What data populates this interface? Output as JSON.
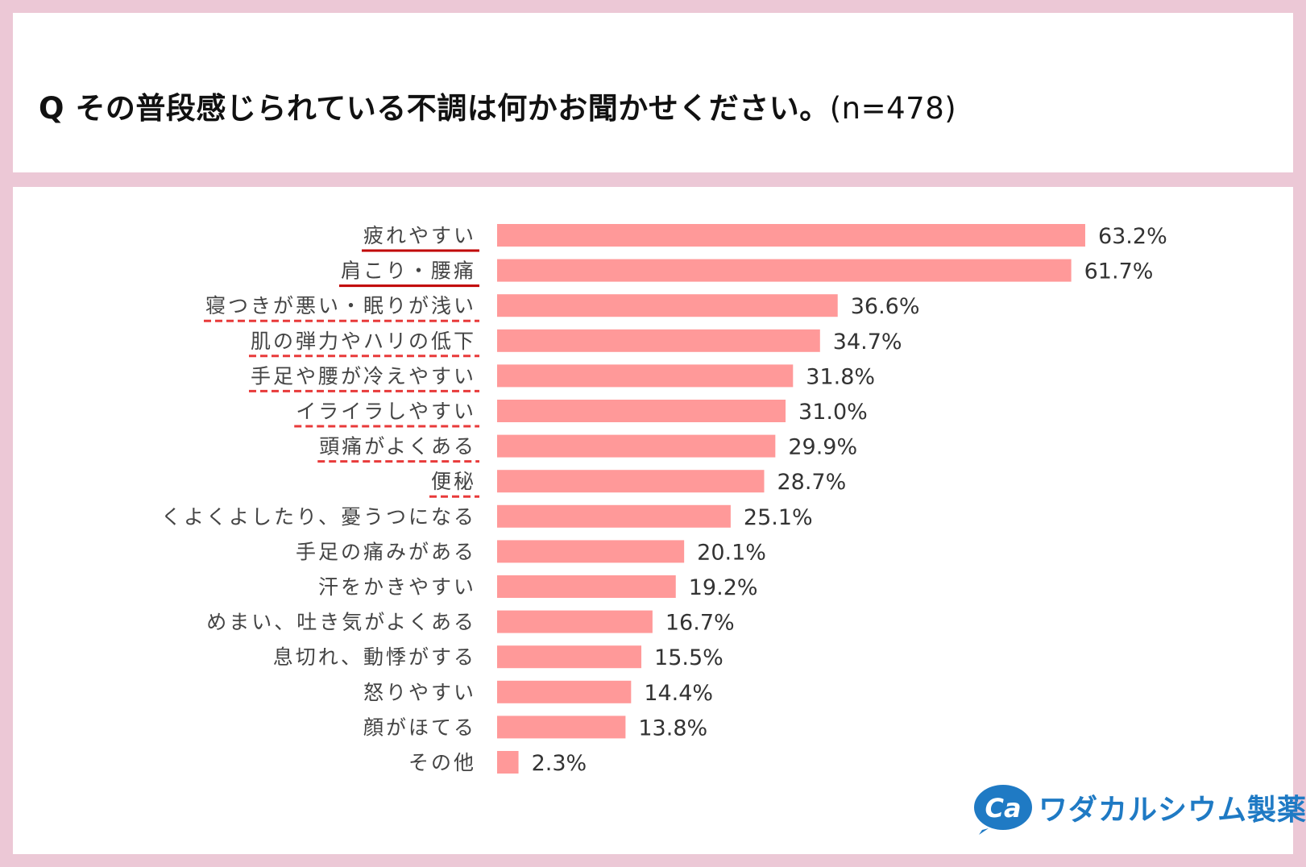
{
  "title": {
    "question": "Q その普段感じられている不調は何かお聞かせください。",
    "sample": "(n=478)"
  },
  "brand": {
    "mark": "Ca",
    "name": "ワダカルシウム製薬",
    "color": "#1f7ac4"
  },
  "colors": {
    "bar": "#ff9999",
    "solid_underline": "#c00000",
    "dashed_underline": "#e83a3a"
  },
  "chart_data": {
    "type": "bar",
    "orientation": "horizontal",
    "title": "",
    "xlabel": "",
    "ylabel": "",
    "xlim": [
      0,
      70
    ],
    "unit": "%",
    "categories": [
      "疲れやすい",
      "肩こり・腰痛",
      "寝つきが悪い・眠りが浅い",
      "肌の弾力やハリの低下",
      "手足や腰が冷えやすい",
      "イライラしやすい",
      "頭痛がよくある",
      "便秘",
      "くよくよしたり、憂うつになる",
      "手足の痛みがある",
      "汗をかきやすい",
      "めまい、吐き気がよくある",
      "息切れ、動悸がする",
      "怒りやすい",
      "顔がほてる",
      "その他"
    ],
    "values": [
      63.2,
      61.7,
      36.6,
      34.7,
      31.8,
      31.0,
      29.9,
      28.7,
      25.1,
      20.1,
      19.2,
      16.7,
      15.5,
      14.4,
      13.8,
      2.3
    ],
    "labels": [
      "63.2%",
      "61.7%",
      "36.6%",
      "34.7%",
      "31.8%",
      "31.0%",
      "29.9%",
      "28.7%",
      "25.1%",
      "20.1%",
      "19.2%",
      "16.7%",
      "15.5%",
      "14.4%",
      "13.8%",
      "2.3%"
    ],
    "highlight": [
      "solid",
      "solid",
      "dashed",
      "dashed",
      "dashed",
      "dashed",
      "dashed",
      "dashed",
      "none",
      "none",
      "none",
      "none",
      "none",
      "none",
      "none",
      "none"
    ]
  }
}
